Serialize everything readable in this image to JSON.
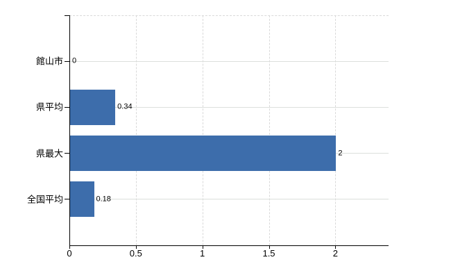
{
  "chart_data": {
    "type": "bar",
    "orientation": "horizontal",
    "title": "",
    "xlabel": "",
    "ylabel": "",
    "categories": [
      "館山市",
      "県平均",
      "県最大",
      "全国平均"
    ],
    "values": [
      0,
      0.34,
      2,
      0.18
    ],
    "value_labels": [
      "0",
      "0.34",
      "2",
      "0.18"
    ],
    "x_ticks": [
      0,
      0.5,
      1,
      1.5,
      2
    ],
    "x_tick_labels": [
      "0",
      "0.5",
      "1",
      "1.5",
      "2"
    ],
    "xlim": [
      0,
      2.4
    ],
    "grid": true,
    "legend": false,
    "colors": {
      "bar": "#3d6dab",
      "axis": "#000000",
      "grid_vertical_dashed": "#d9d9d9",
      "grid_horizontal_solid": "#dcdfdc",
      "text": "#000000",
      "background": "#ffffff"
    }
  }
}
